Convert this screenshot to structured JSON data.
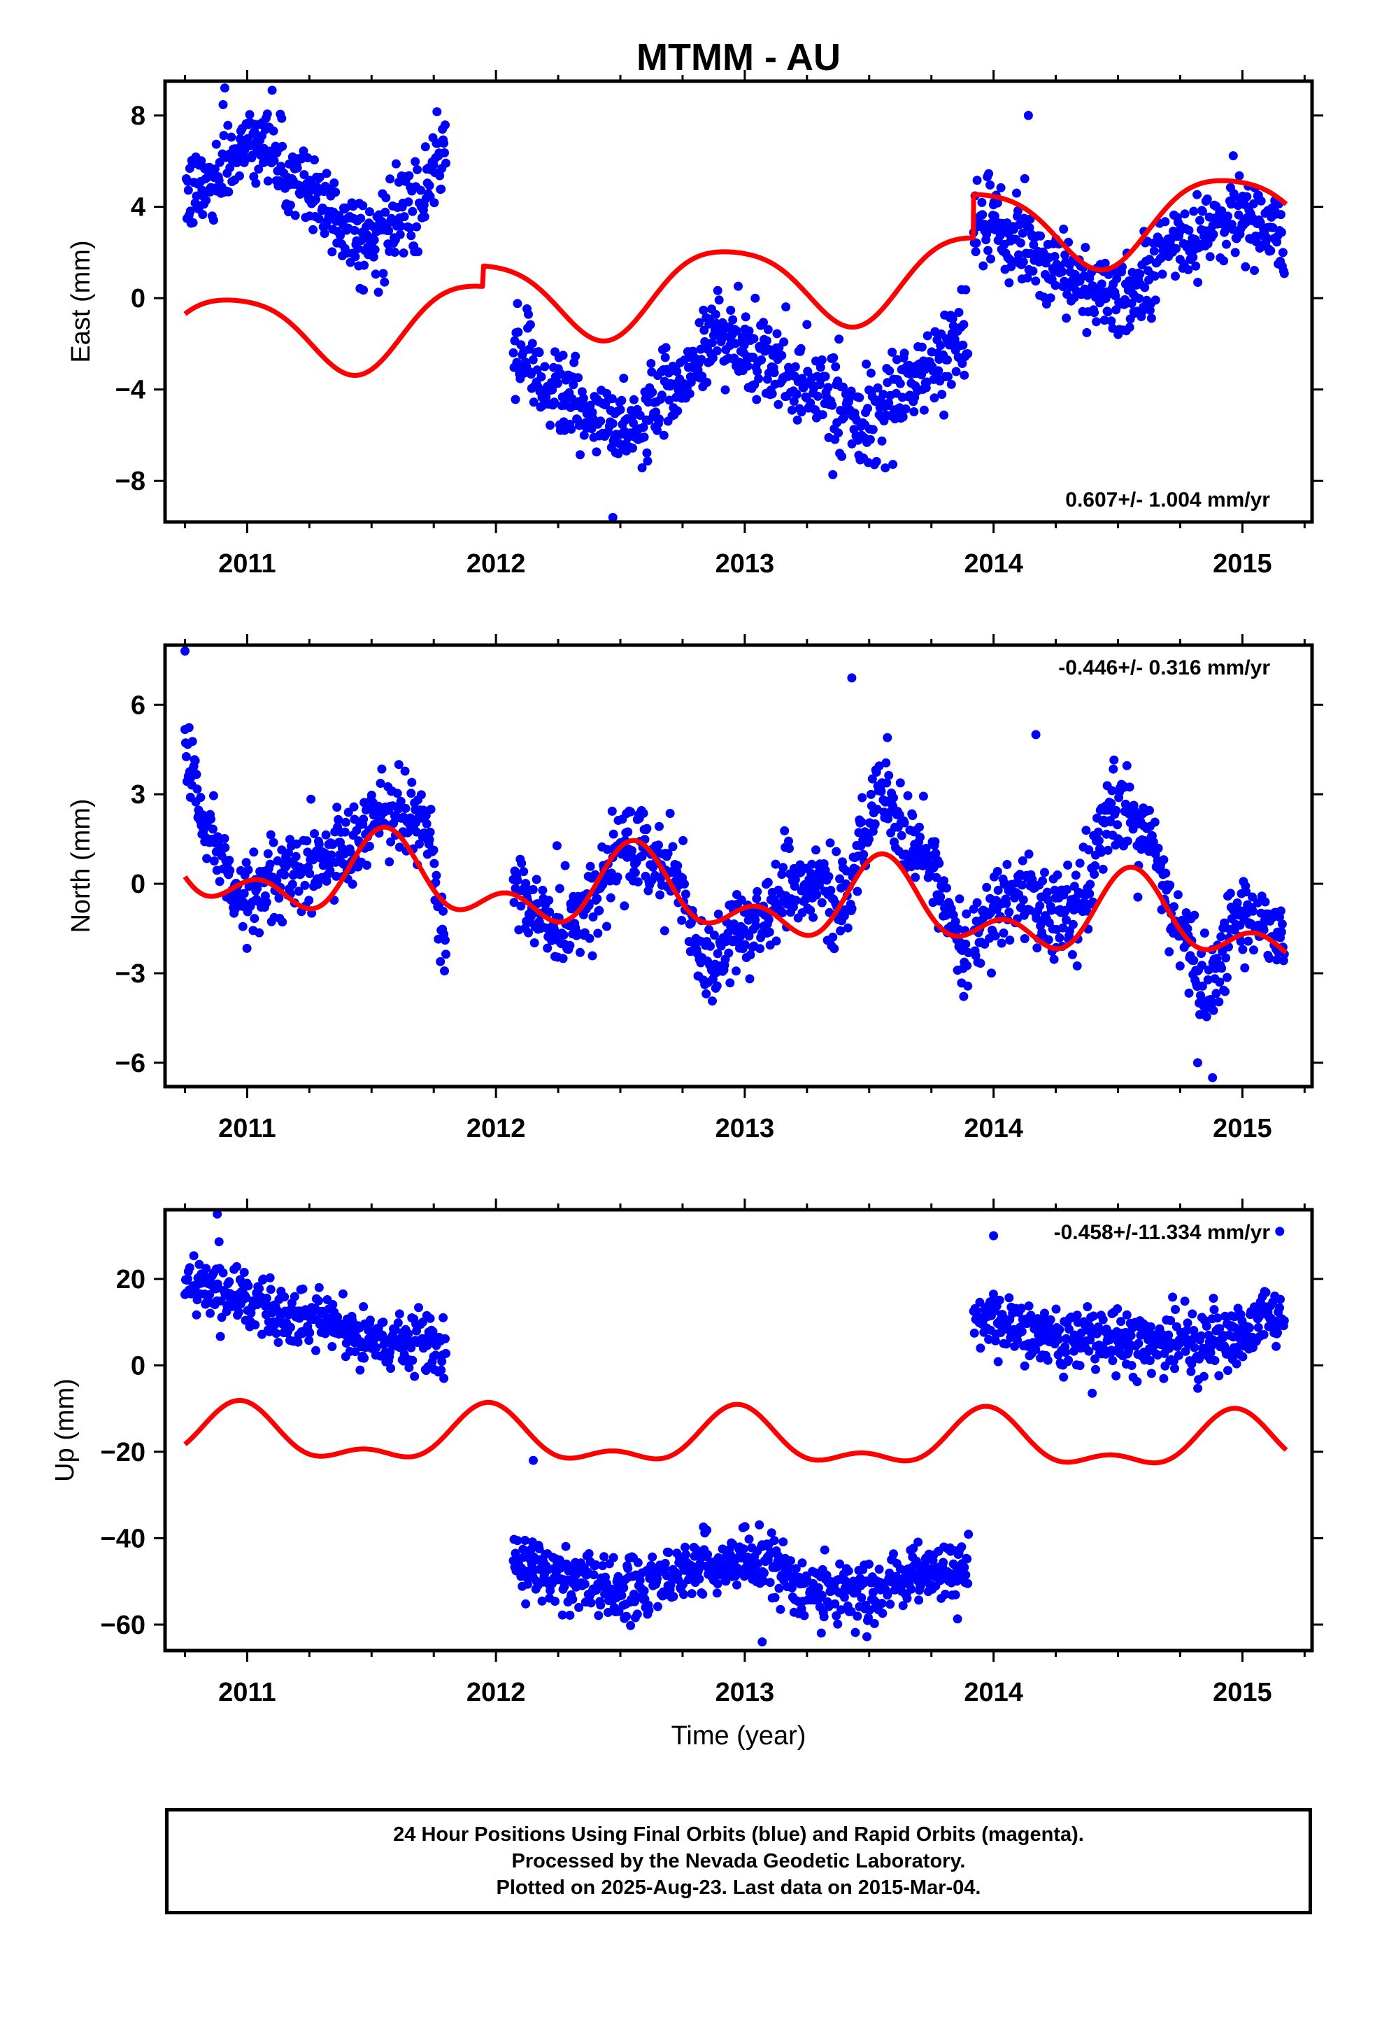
{
  "title": "MTMM - AU",
  "colors": {
    "final_points": "#0000ff",
    "model_line": "#ff0000",
    "axis": "#000000"
  },
  "footer": {
    "line1": "24 Hour Positions Using Final Orbits (blue) and Rapid Orbits (magenta).",
    "line2": "Processed by the Nevada Geodetic Laboratory.",
    "line3": "Plotted on 2025-Aug-23. Last data on 2015-Mar-04."
  },
  "chart_data": [
    {
      "type": "scatter",
      "ylabel": "East (mm)",
      "xlabel": "",
      "xlim": [
        2010.67,
        2015.28
      ],
      "ylim": [
        -9.8,
        9.5
      ],
      "xticks": [
        2011,
        2012,
        2013,
        2014,
        2015
      ],
      "yticks": [
        -8,
        -4,
        0,
        4,
        8
      ],
      "rate": "0.607+/- 1.004 mm/yr",
      "rate_position": "bottom-right",
      "segments": [
        {
          "x": [
            2010.75,
            2011.05,
            2011.2,
            2011.5,
            2011.68,
            2011.8
          ],
          "y": [
            4.5,
            7.0,
            5.0,
            2.5,
            4.0,
            6.5
          ]
        },
        {
          "x": [
            2012.07,
            2012.25,
            2012.4,
            2012.55,
            2012.75,
            2012.9,
            2013.1,
            2013.3,
            2013.5,
            2013.7,
            2013.9
          ],
          "y": [
            -2.5,
            -4.0,
            -5.5,
            -5.5,
            -3.5,
            -1.5,
            -3.0,
            -4.0,
            -5.5,
            -3.5,
            -1.5
          ]
        },
        {
          "x": [
            2013.92,
            2014.1,
            2014.3,
            2014.5,
            2014.75,
            2015.0,
            2015.17
          ],
          "y": [
            3.5,
            2.5,
            1.0,
            0.0,
            2.5,
            3.5,
            3.0
          ]
        }
      ],
      "model": {
        "offset": -0.4,
        "trend": 0.607,
        "t0": 2012.9,
        "annual_amp": 1.8,
        "annual_peak": 2012.93,
        "semi_amp": 0.3,
        "semi_peak": 2013.2,
        "jumps": [
          {
            "t": 2011.95,
            "v": 0.9
          },
          {
            "t": 2013.92,
            "v": 1.9
          }
        ]
      },
      "noise": 0.9,
      "outliers": [
        {
          "x": 2010.91,
          "y": 9.2
        },
        {
          "x": 2014.14,
          "y": 8.0
        },
        {
          "x": 2012.47,
          "y": -9.6
        }
      ]
    },
    {
      "type": "scatter",
      "ylabel": "North (mm)",
      "xlabel": "",
      "xlim": [
        2010.67,
        2015.28
      ],
      "ylim": [
        -6.8,
        8.0
      ],
      "xticks": [
        2011,
        2012,
        2013,
        2014,
        2015
      ],
      "yticks": [
        -6,
        -3,
        0,
        3,
        6
      ],
      "rate": "-0.446+/- 0.316 mm/yr",
      "rate_position": "top-right",
      "segments": [
        {
          "x": [
            2010.75,
            2010.85,
            2011.0,
            2011.2,
            2011.4,
            2011.55,
            2011.7,
            2011.8
          ],
          "y": [
            4.5,
            1.5,
            -0.5,
            0.5,
            1.0,
            2.5,
            2.0,
            -1.5
          ]
        },
        {
          "x": [
            2012.07,
            2012.2,
            2012.35,
            2012.55,
            2012.7,
            2012.85,
            2013.0,
            2013.2,
            2013.4,
            2013.55,
            2013.7,
            2013.9
          ],
          "y": [
            0.0,
            -1.5,
            -1.0,
            1.5,
            0.5,
            -2.5,
            -1.5,
            0.0,
            -0.5,
            3.0,
            1.0,
            -2.0
          ]
        },
        {
          "x": [
            2013.92,
            2014.1,
            2014.3,
            2014.5,
            2014.62,
            2014.75,
            2014.85,
            2015.0,
            2015.17
          ],
          "y": [
            -1.5,
            -0.5,
            -1.0,
            2.5,
            1.5,
            -1.5,
            -3.5,
            -1.0,
            -1.5
          ]
        }
      ],
      "model": {
        "offset": -0.5,
        "trend": -0.446,
        "t0": 2012.9,
        "annual_amp": 1.0,
        "annual_peak": 2012.57,
        "semi_amp": 0.8,
        "semi_peak": 2012.55,
        "jumps": [
          {
            "t": 2011.95,
            "v": 0.0
          },
          {
            "t": 2013.92,
            "v": 0.0
          }
        ]
      },
      "noise": 0.7,
      "outliers": [
        {
          "x": 2010.75,
          "y": 7.8
        },
        {
          "x": 2013.43,
          "y": 6.9
        },
        {
          "x": 2014.17,
          "y": 5.0
        },
        {
          "x": 2014.88,
          "y": -6.5
        },
        {
          "x": 2014.82,
          "y": -6.0
        }
      ]
    },
    {
      "type": "scatter",
      "ylabel": "Up (mm)",
      "xlabel": "Time (year)",
      "xlim": [
        2010.67,
        2015.28
      ],
      "ylim": [
        -66,
        36
      ],
      "xticks": [
        2011,
        2012,
        2013,
        2014,
        2015
      ],
      "yticks": [
        -60,
        -40,
        -20,
        0,
        20
      ],
      "rate": "-0.458+/-11.334 mm/yr",
      "rate_position": "top-right",
      "segments": [
        {
          "x": [
            2010.75,
            2010.95,
            2011.1,
            2011.3,
            2011.5,
            2011.7,
            2011.8
          ],
          "y": [
            18.0,
            17.0,
            12.0,
            10.0,
            6.0,
            5.0,
            5.0
          ]
        },
        {
          "x": [
            2012.07,
            2012.3,
            2012.5,
            2012.7,
            2012.9,
            2013.1,
            2013.3,
            2013.5,
            2013.7,
            2013.9
          ],
          "y": [
            -46.0,
            -49.0,
            -52.0,
            -49.0,
            -45.0,
            -46.0,
            -52.0,
            -53.0,
            -48.0,
            -47.0
          ]
        },
        {
          "x": [
            2013.92,
            2014.1,
            2014.3,
            2014.5,
            2014.7,
            2014.9,
            2015.1,
            2015.17
          ],
          "y": [
            10.0,
            8.0,
            6.0,
            5.0,
            6.0,
            5.0,
            10.0,
            12.0
          ]
        }
      ],
      "model": {
        "offset": -17.5,
        "trend": -0.458,
        "t0": 2012.9,
        "annual_amp": 5.5,
        "annual_peak": 2012.97,
        "semi_amp": 3.0,
        "semi_peak": 2012.97,
        "jumps": [
          {
            "t": 2011.95,
            "v": 0.0
          },
          {
            "t": 2013.92,
            "v": 0.0
          }
        ]
      },
      "noise": 3.5,
      "outliers": [
        {
          "x": 2010.88,
          "y": 35.0
        },
        {
          "x": 2013.07,
          "y": -64.0
        },
        {
          "x": 2014.0,
          "y": 30.0
        },
        {
          "x": 2015.15,
          "y": 31.0
        },
        {
          "x": 2012.15,
          "y": -22.0
        }
      ]
    }
  ]
}
